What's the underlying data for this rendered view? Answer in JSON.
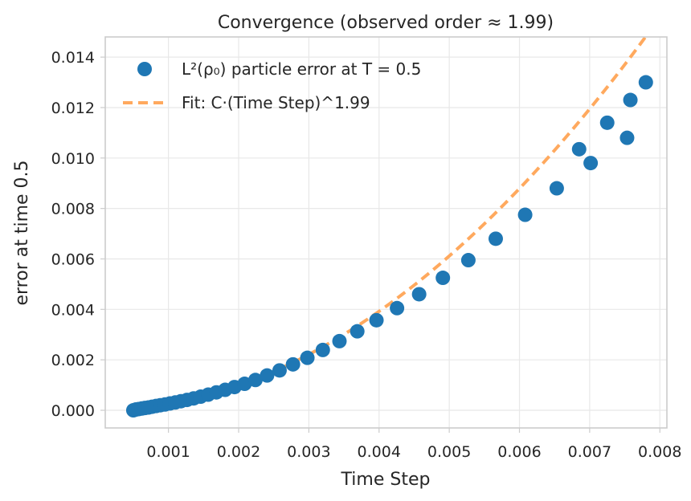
{
  "chart_data": {
    "type": "scatter",
    "title": "Convergence (observed order ≈ 1.99)",
    "xlabel": "Time Step",
    "ylabel": "error at time 0.5",
    "xlim": [
      0.0001,
      0.0081
    ],
    "ylim": [
      -0.0007,
      0.0148
    ],
    "xticks": [
      0.001,
      0.002,
      0.003,
      0.004,
      0.005,
      0.006,
      0.007,
      0.008
    ],
    "xtick_labels": [
      "0.001",
      "0.002",
      "0.003",
      "0.004",
      "0.005",
      "0.006",
      "0.007",
      "0.008"
    ],
    "yticks": [
      0.0,
      0.002,
      0.004,
      0.006,
      0.008,
      0.01,
      0.012,
      0.014
    ],
    "ytick_labels": [
      "0.000",
      "0.002",
      "0.004",
      "0.006",
      "0.008",
      "0.010",
      "0.012",
      "0.014"
    ],
    "grid": true,
    "legend_position": "top-left",
    "series": [
      {
        "name": "L²(ρ₀) particle error at T = 0.5",
        "kind": "scatter",
        "color": "#1f77b4",
        "x": [
          0.0005,
          0.000537,
          0.000577,
          0.00062,
          0.000665,
          0.000715,
          0.000768,
          0.000824,
          0.000885,
          0.000951,
          0.001021,
          0.001097,
          0.001178,
          0.001265,
          0.001359,
          0.001459,
          0.001567,
          0.001683,
          0.001808,
          0.001941,
          0.002085,
          0.002239,
          0.002405,
          0.002583,
          0.002774,
          0.002979,
          0.003199,
          0.003436,
          0.00369,
          0.003963,
          0.004256,
          0.004571,
          0.004909,
          0.005272,
          0.005662,
          0.006081,
          0.006531,
          0.007014,
          0.007533,
          0.0078,
          0.00685,
          0.00725,
          0.00758
        ],
        "y": [
          0.0,
          3e-05,
          5e-05,
          7e-05,
          9e-05,
          0.00011,
          0.00014,
          0.00017,
          0.0002,
          0.00023,
          0.00027,
          0.00031,
          0.00036,
          0.00041,
          0.00047,
          0.00054,
          0.00062,
          0.00071,
          0.00081,
          0.00092,
          0.00105,
          0.0012,
          0.00138,
          0.00158,
          0.00182,
          0.00208,
          0.00239,
          0.00274,
          0.00313,
          0.00357,
          0.00405,
          0.0046,
          0.00525,
          0.00595,
          0.0068,
          0.00775,
          0.0088,
          0.0098,
          0.0108,
          0.013,
          0.01035,
          0.0114,
          0.0123
        ]
      },
      {
        "name": "Fit: C·(Time Step)^1.99",
        "kind": "line",
        "style": "dashed",
        "color": "#ffa95e",
        "exponent": 1.99,
        "coefficient": 232.0,
        "x_range": [
          0.0005,
          0.0078
        ]
      }
    ]
  }
}
